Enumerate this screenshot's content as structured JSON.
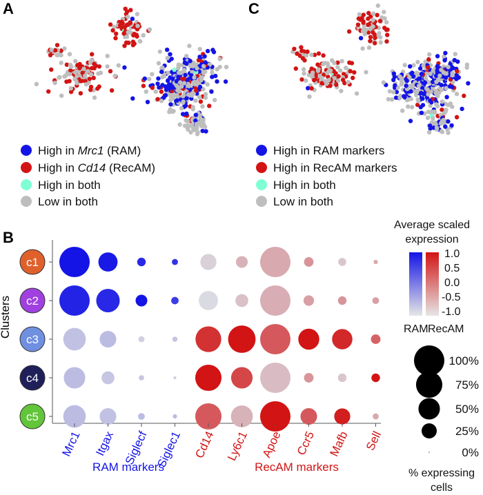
{
  "panel_a": {
    "letter": "A",
    "legend": [
      {
        "pre": "High in ",
        "gene": "Mrc1",
        "post": " (RAM)",
        "color": "#1414e6"
      },
      {
        "pre": "High in ",
        "gene": "Cd14",
        "post": " (RecAM)",
        "color": "#d21414"
      },
      {
        "pre": "High in both",
        "gene": "",
        "post": "",
        "color": "#7fffd4"
      },
      {
        "pre": "Low in both",
        "gene": "",
        "post": "",
        "color": "#bebebe"
      }
    ]
  },
  "panel_c": {
    "letter": "C",
    "legend": [
      {
        "text": "High in RAM markers",
        "color": "#1414e6"
      },
      {
        "text": "High in RecAM markers",
        "color": "#d21414"
      },
      {
        "text": "High in both",
        "color": "#7fffd4"
      },
      {
        "text": "Low in both",
        "color": "#bebebe"
      }
    ]
  },
  "panel_b": {
    "letter": "B",
    "ylabel": "Clusters",
    "group_labels": {
      "ram": "RAM markers",
      "recam": "RecAM markers"
    },
    "colorbar": {
      "title_line1": "Average scaled",
      "title_line2": "expression",
      "ticks": [
        "1.0",
        "0.5",
        "0.0",
        "-0.5",
        "-1.0"
      ],
      "label_ram": "RAM",
      "label_recam": "RecAM",
      "ram_color": "#1414e6",
      "recam_color": "#d21414"
    },
    "size_legend": {
      "entries": [
        "100%",
        "75%",
        "50%",
        "25%",
        "0%"
      ],
      "title_line1": "% expressing",
      "title_line2": "cells"
    }
  },
  "chart_data": {
    "type": "dotplot",
    "clusters": [
      {
        "label": "c1",
        "color": "#e0602c"
      },
      {
        "label": "c2",
        "color": "#a040e0"
      },
      {
        "label": "c3",
        "color": "#6f8fe0"
      },
      {
        "label": "c4",
        "color": "#1f1f5a"
      },
      {
        "label": "c5",
        "color": "#62c53a"
      }
    ],
    "genes": [
      {
        "name": "Mrc1",
        "group": "RAM"
      },
      {
        "name": "Itgax",
        "group": "RAM"
      },
      {
        "name": "Siglecf",
        "group": "RAM"
      },
      {
        "name": "Siglec1",
        "group": "RAM"
      },
      {
        "name": "Cd14",
        "group": "RecAM"
      },
      {
        "name": "Ly6c1",
        "group": "RecAM"
      },
      {
        "name": "Apoe",
        "group": "RecAM"
      },
      {
        "name": "Ccr5",
        "group": "RecAM"
      },
      {
        "name": "Mafb",
        "group": "RecAM"
      },
      {
        "name": "Sell",
        "group": "RecAM"
      }
    ],
    "pct_expressing": [
      [
        100,
        40,
        8,
        4,
        28,
        15,
        100,
        10,
        7,
        2
      ],
      [
        100,
        60,
        15,
        6,
        40,
        18,
        100,
        12,
        8,
        5
      ],
      [
        55,
        30,
        4,
        3,
        72,
        82,
        100,
        48,
        45,
        10
      ],
      [
        50,
        18,
        3,
        1,
        75,
        50,
        100,
        10,
        8,
        8
      ],
      [
        55,
        30,
        5,
        2,
        75,
        52,
        100,
        30,
        28,
        4
      ]
    ],
    "avg_scaled_expression": [
      [
        1.0,
        0.95,
        0.8,
        0.7,
        -0.9,
        -0.6,
        -0.5,
        -0.3,
        -0.8,
        -0.5
      ],
      [
        0.85,
        0.8,
        1.0,
        0.6,
        -1.0,
        -0.75,
        -0.55,
        -0.4,
        -0.3,
        -0.4
      ],
      [
        -0.75,
        -0.7,
        -0.9,
        -0.8,
        0.7,
        1.0,
        0.3,
        1.0,
        0.8,
        0.2
      ],
      [
        -0.7,
        -0.8,
        -0.8,
        -0.9,
        1.0,
        0.5,
        -0.7,
        -0.3,
        -0.8,
        1.0
      ],
      [
        -0.7,
        -0.75,
        -0.7,
        -0.7,
        0.3,
        -0.6,
        1.0,
        0.3,
        0.9,
        -0.5
      ]
    ],
    "color_range": [
      -1.0,
      1.0
    ],
    "size_range_pct": [
      0,
      100
    ]
  }
}
